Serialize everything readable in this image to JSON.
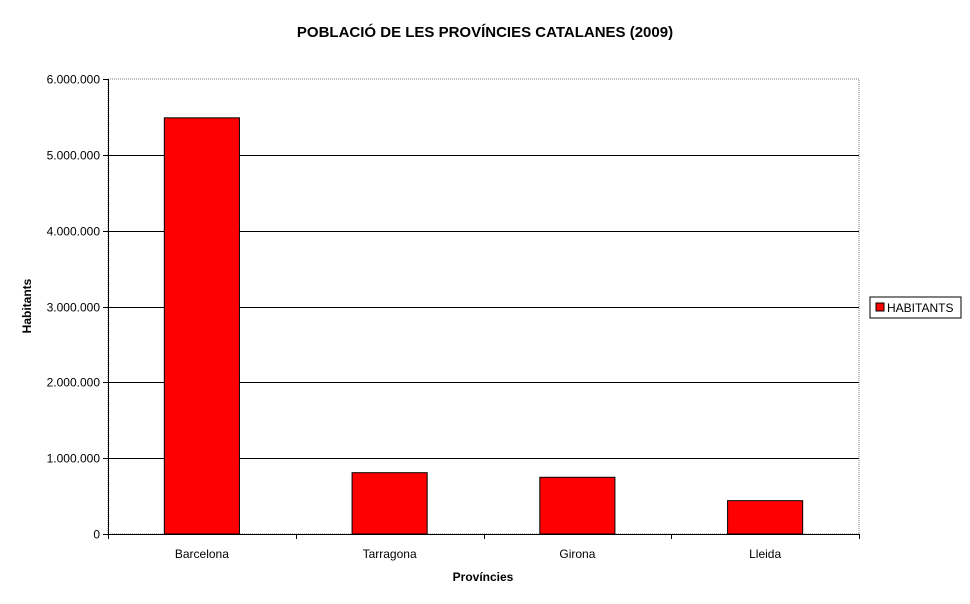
{
  "chart_data": {
    "type": "bar",
    "title": "POBLACIÓ DE LES PROVÍNCIES CATALANES (2009)",
    "xlabel": "Províncies",
    "ylabel": "Habitants",
    "categories": [
      "Barcelona",
      "Tarragona",
      "Girona",
      "Lleida"
    ],
    "series": [
      {
        "name": "HABITANTS",
        "color": "#ff0000",
        "values": [
          5487935,
          808420,
          747782,
          439768
        ]
      }
    ],
    "ylim": [
      0,
      6000000
    ],
    "yticks": [
      0,
      1000000,
      2000000,
      3000000,
      4000000,
      5000000,
      6000000
    ],
    "ytick_labels": [
      "0",
      "1.000.000",
      "2.000.000",
      "3.000.000",
      "4.000.000",
      "5.000.000",
      "6.000.000"
    ],
    "grid": true,
    "legend_position": "right"
  }
}
